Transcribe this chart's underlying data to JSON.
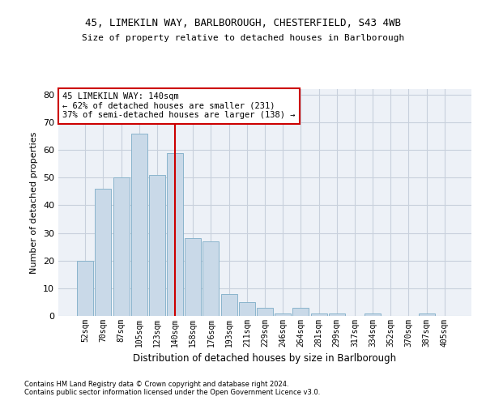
{
  "title1": "45, LIMEKILN WAY, BARLBOROUGH, CHESTERFIELD, S43 4WB",
  "title2": "Size of property relative to detached houses in Barlborough",
  "xlabel": "Distribution of detached houses by size in Barlborough",
  "ylabel": "Number of detached properties",
  "categories": [
    "52sqm",
    "70sqm",
    "87sqm",
    "105sqm",
    "123sqm",
    "140sqm",
    "158sqm",
    "176sqm",
    "193sqm",
    "211sqm",
    "229sqm",
    "246sqm",
    "264sqm",
    "281sqm",
    "299sqm",
    "317sqm",
    "334sqm",
    "352sqm",
    "370sqm",
    "387sqm",
    "405sqm"
  ],
  "values": [
    20,
    46,
    50,
    66,
    51,
    59,
    28,
    27,
    8,
    5,
    3,
    1,
    3,
    1,
    1,
    0,
    1,
    0,
    0,
    1,
    0
  ],
  "bar_color": "#c9d9e8",
  "bar_edge_color": "#8ab4cc",
  "vline_x_index": 5,
  "vline_color": "#cc0000",
  "annotation_title": "45 LIMEKILN WAY: 140sqm",
  "annotation_line1": "← 62% of detached houses are smaller (231)",
  "annotation_line2": "37% of semi-detached houses are larger (138) →",
  "annotation_box_color": "#cc0000",
  "ylim": [
    0,
    82
  ],
  "yticks": [
    0,
    10,
    20,
    30,
    40,
    50,
    60,
    70,
    80
  ],
  "footnote1": "Contains HM Land Registry data © Crown copyright and database right 2024.",
  "footnote2": "Contains public sector information licensed under the Open Government Licence v3.0.",
  "grid_color": "#c8d0dc",
  "background_color": "#edf1f7"
}
